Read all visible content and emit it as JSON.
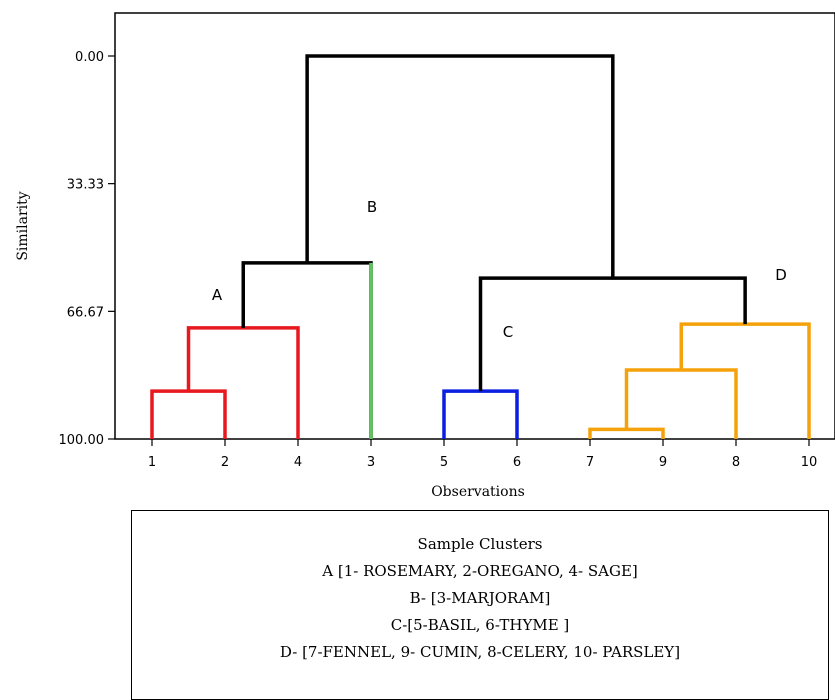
{
  "chart_data": {
    "type": "dendrogram",
    "xlabel": "Observations",
    "ylabel": "Similarity",
    "yticks": [
      "0.00",
      "33.33",
      "66.67",
      "100.00"
    ],
    "ylim": [
      0,
      100
    ],
    "leaf_order": [
      "1",
      "2",
      "4",
      "3",
      "5",
      "6",
      "7",
      "9",
      "8",
      "10"
    ],
    "merges": [
      {
        "left": "1",
        "right": "2",
        "similarity": 87.5,
        "color": "#e8191e"
      },
      {
        "left": "1,2",
        "right": "4",
        "similarity": 71.0,
        "color": "#e8191e"
      },
      {
        "left": "1,2,4",
        "right": "3",
        "similarity": 54.0,
        "color": "#000000"
      },
      {
        "left": "5",
        "right": "6",
        "similarity": 87.5,
        "color": "#0a1fe0"
      },
      {
        "left": "7",
        "right": "9",
        "similarity": 97.5,
        "color": "#f5a20a"
      },
      {
        "left": "7,9",
        "right": "8",
        "similarity": 82.0,
        "color": "#f5a20a"
      },
      {
        "left": "7,9,8",
        "right": "10",
        "similarity": 70.0,
        "color": "#f5a20a"
      },
      {
        "left": "5,6",
        "right": "7,9,8,10",
        "similarity": 58.0,
        "color": "#000000"
      },
      {
        "left": "1,2,4,3",
        "right": "5,6,7,9,8,10",
        "similarity": 0.0,
        "color": "#000000"
      }
    ],
    "leaf_stems": [
      {
        "leaf": "3",
        "color": "#5dc75d"
      }
    ],
    "cluster_labels": [
      "A",
      "B",
      "C",
      "D"
    ]
  },
  "legend": {
    "title": "Sample Clusters",
    "lines": [
      "A [1- ROSEMARY, 2-OREGANO, 4- SAGE]",
      "B- [3-MARJORAM]",
      "C-[5-BASIL, 6-THYME ]",
      "D- [7-FENNEL, 9- CUMIN, 8-CELERY, 10- PARSLEY]"
    ]
  }
}
